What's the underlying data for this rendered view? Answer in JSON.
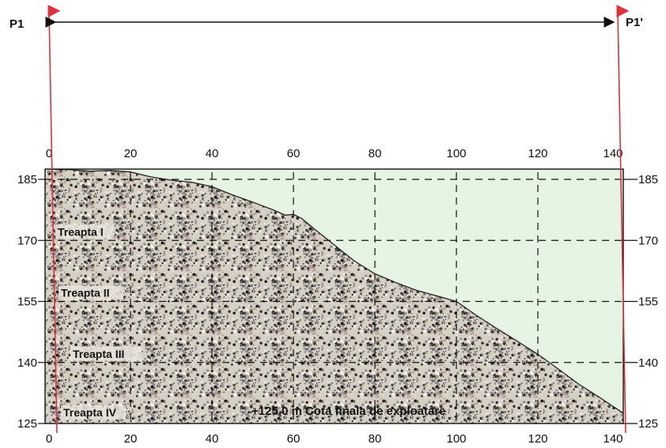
{
  "profile": {
    "start_label": "P1",
    "end_label": "P1'",
    "final_level_label": "+125,0 m Cota finala de exploatare",
    "steps": [
      {
        "label": "Treapta I",
        "elevation": 170
      },
      {
        "label": "Treapta II",
        "elevation": 155
      },
      {
        "label": "Treapta III",
        "elevation": 140
      },
      {
        "label": "Treapta IV",
        "elevation": 125
      }
    ],
    "colors": {
      "rock_base": "#d6cfc4",
      "air": "#e6f5e3",
      "section_line": "#e0303a",
      "grid": "#111111"
    }
  },
  "chart_data": {
    "type": "area",
    "title": "",
    "x_ticks": [
      0,
      20,
      40,
      60,
      80,
      100,
      120,
      140
    ],
    "y_ticks": [
      185,
      170,
      155,
      140,
      125
    ],
    "xlim": [
      0,
      141
    ],
    "ylim": [
      125,
      188
    ],
    "grid": true,
    "surface_profile": {
      "x": [
        0,
        5,
        10,
        15,
        20,
        25,
        30,
        35,
        40,
        45,
        50,
        55,
        58,
        60,
        62,
        65,
        70,
        75,
        80,
        85,
        90,
        95,
        100,
        105,
        110,
        115,
        120,
        125,
        130,
        135,
        141
      ],
      "y": [
        187.5,
        187.4,
        187,
        187.2,
        186.8,
        185.6,
        184.8,
        184.3,
        183.2,
        181.2,
        179.4,
        177.5,
        176.2,
        176.4,
        175.4,
        172.9,
        168.9,
        164.9,
        161.8,
        159.7,
        157.8,
        156.4,
        155,
        151.5,
        148.3,
        145.2,
        142,
        138.4,
        134.7,
        131.5,
        127.5
      ]
    }
  }
}
